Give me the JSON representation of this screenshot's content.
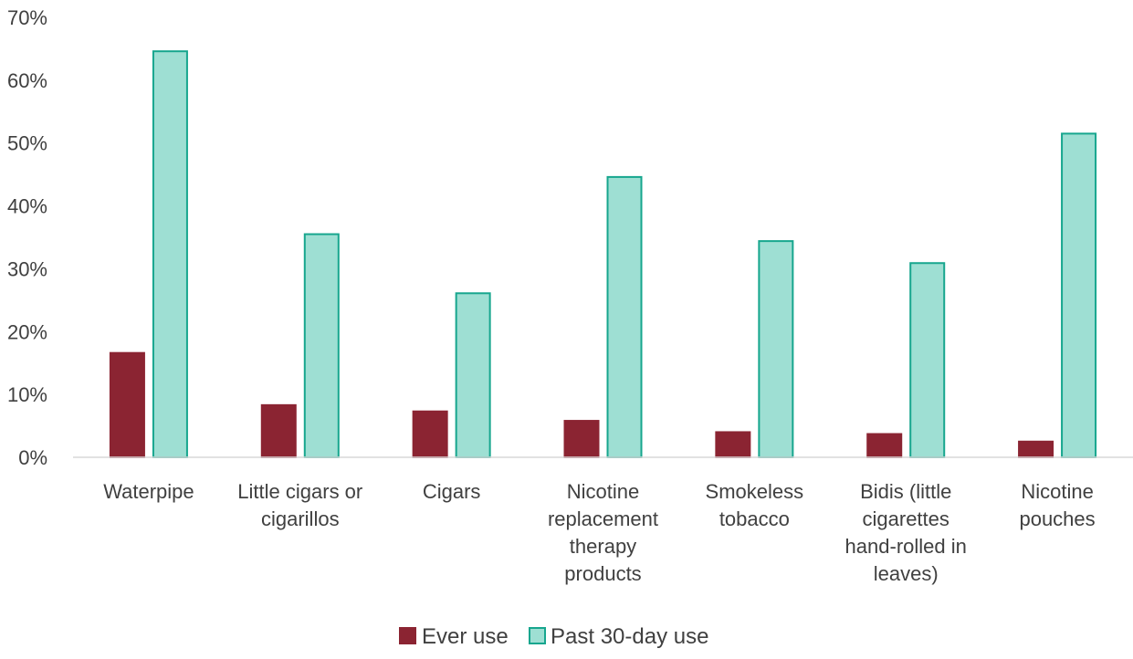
{
  "chart_data": {
    "type": "bar",
    "categories": [
      [
        "Waterpipe"
      ],
      [
        "Little cigars or",
        "cigarillos"
      ],
      [
        "Cigars"
      ],
      [
        "Nicotine",
        "replacement",
        "therapy",
        "products"
      ],
      [
        "Smokeless",
        "tobacco"
      ],
      [
        "Bidis (little",
        "cigarettes",
        "hand-rolled in",
        "leaves)"
      ],
      [
        "Nicotine",
        "pouches"
      ]
    ],
    "series": [
      {
        "name": "Ever use",
        "values": [
          16.6,
          8.3,
          7.3,
          5.8,
          4.0,
          3.7,
          2.5
        ],
        "color": "#8B2432",
        "border": "#8B2432"
      },
      {
        "name": "Past 30-day use",
        "values": [
          64.6,
          35.5,
          26.1,
          44.6,
          34.4,
          30.9,
          51.5
        ],
        "color": "#9EDFD3",
        "border": "#17A68E"
      }
    ],
    "yticks": [
      "0%",
      "10%",
      "20%",
      "30%",
      "40%",
      "50%",
      "60%",
      "70%"
    ],
    "ylim": [
      0,
      70
    ],
    "grid": false,
    "legend_position": "bottom-center",
    "title": "",
    "xlabel": "",
    "ylabel": ""
  }
}
